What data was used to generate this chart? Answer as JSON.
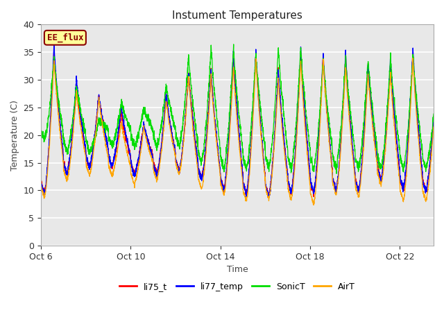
{
  "title": "Instument Temperatures",
  "xlabel": "Time",
  "ylabel": "Temperature (C)",
  "ylim": [
    0,
    40
  ],
  "yticks": [
    0,
    5,
    10,
    15,
    20,
    25,
    30,
    35,
    40
  ],
  "xtick_positions": [
    0,
    4,
    8,
    12,
    16
  ],
  "xtick_labels": [
    "Oct 6",
    "Oct 10",
    "Oct 14",
    "Oct 18",
    "Oct 22"
  ],
  "xlim": [
    0,
    17.5
  ],
  "line_colors": {
    "li75_t": "#FF0000",
    "li77_temp": "#0000FF",
    "SonicT": "#00DD00",
    "AirT": "#FFA500"
  },
  "annotation_text": "EE_flux",
  "annotation_bg": "#FFFF99",
  "annotation_border": "#8B0000",
  "annotation_text_color": "#8B0000",
  "plot_bg": "#E8E8E8",
  "fig_bg": "#FFFFFF",
  "grid_color": "#FFFFFF",
  "legend_entries": [
    "li75_t",
    "li77_temp",
    "SonicT",
    "AirT"
  ]
}
